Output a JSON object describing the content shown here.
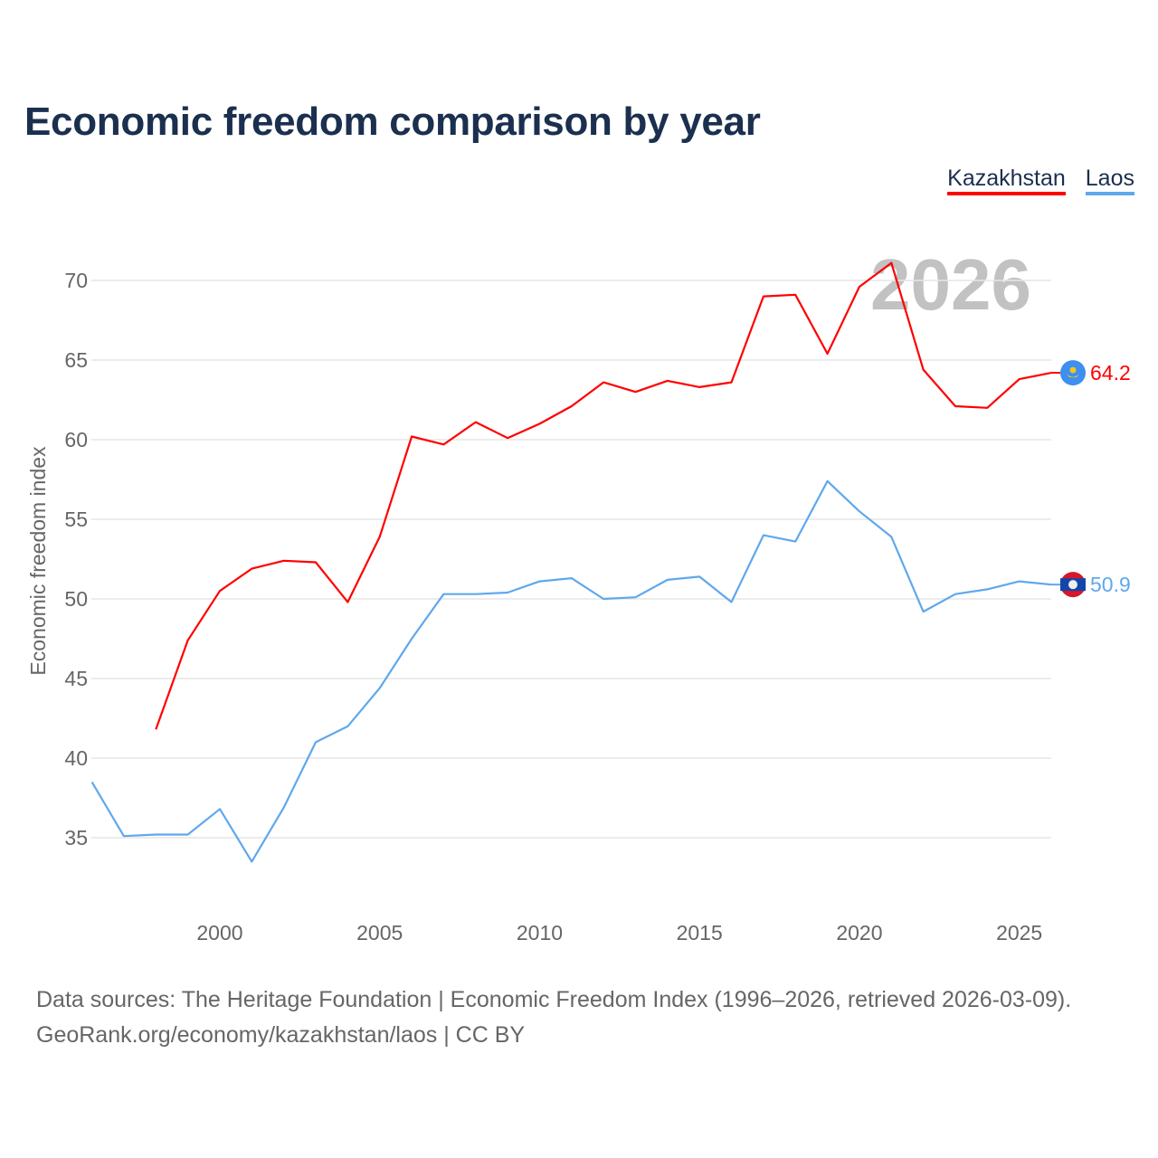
{
  "chart_data": {
    "type": "line",
    "title": "Economic freedom comparison by year",
    "xlabel": "",
    "ylabel": "Economic freedom index",
    "xlim": [
      1996,
      2026
    ],
    "ylim": [
      30.5,
      73
    ],
    "yticks": [
      35,
      40,
      45,
      50,
      55,
      60,
      65,
      70
    ],
    "xticks": [
      2000,
      2005,
      2010,
      2015,
      2020,
      2025
    ],
    "grid": true,
    "legend_position": "top-right",
    "watermark_year": "2026",
    "series": [
      {
        "name": "Kazakhstan",
        "color": "#ff0000",
        "end_label": "64.2",
        "flag": "kazakhstan-flag",
        "x": [
          1998,
          1999,
          2000,
          2001,
          2002,
          2003,
          2004,
          2005,
          2006,
          2007,
          2008,
          2009,
          2010,
          2011,
          2012,
          2013,
          2014,
          2015,
          2016,
          2017,
          2018,
          2019,
          2020,
          2021,
          2022,
          2023,
          2024,
          2025,
          2026
        ],
        "values": [
          41.8,
          47.4,
          50.5,
          51.9,
          52.4,
          52.3,
          49.8,
          53.9,
          60.2,
          59.7,
          61.1,
          60.1,
          61.0,
          62.1,
          63.6,
          63.0,
          63.7,
          63.3,
          63.6,
          69.0,
          69.1,
          65.4,
          69.6,
          71.1,
          64.4,
          62.1,
          62.0,
          63.8,
          64.2
        ]
      },
      {
        "name": "Laos",
        "color": "#5fa8ec",
        "end_label": "50.9",
        "flag": "laos-flag",
        "x": [
          1996,
          1997,
          1998,
          1999,
          2000,
          2001,
          2002,
          2003,
          2004,
          2005,
          2006,
          2007,
          2008,
          2009,
          2010,
          2011,
          2012,
          2013,
          2014,
          2015,
          2016,
          2017,
          2018,
          2019,
          2020,
          2021,
          2022,
          2023,
          2024,
          2025,
          2026
        ],
        "values": [
          38.5,
          35.1,
          35.2,
          35.2,
          36.8,
          33.5,
          36.9,
          41.0,
          42.0,
          44.4,
          47.5,
          50.3,
          50.3,
          50.4,
          51.1,
          51.3,
          50.0,
          50.1,
          51.2,
          51.4,
          49.8,
          54.0,
          53.6,
          57.4,
          55.5,
          53.9,
          49.2,
          50.3,
          50.6,
          51.1,
          50.9
        ]
      }
    ]
  },
  "footer": {
    "line1": "Data sources: The Heritage Foundation | Economic Freedom Index (1996–2026, retrieved 2026-03-09).",
    "line2": "GeoRank.org/economy/kazakhstan/laos | CC BY"
  }
}
